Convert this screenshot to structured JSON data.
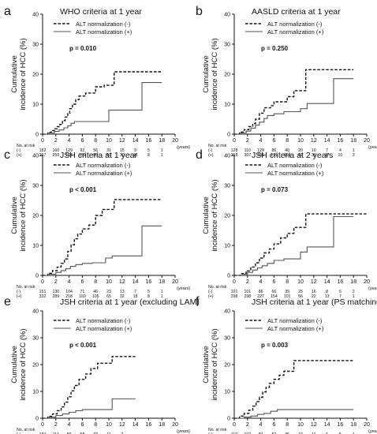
{
  "axis_units": {
    "x": "(years)",
    "risk_header": "No. at risk",
    "minus": "(-)",
    "plus": "(+)"
  },
  "style": {
    "minus_color": "#111111",
    "plus_color": "#555555"
  },
  "chart_data": [
    {
      "panel": "a",
      "title": "WHO criteria at 1 year",
      "type": "line",
      "ylabel": "Cumulative incidence of HCC (%)",
      "xlabel": "(years)",
      "xlim": [
        0,
        20
      ],
      "ylim": [
        0,
        40
      ],
      "xticks": [
        0,
        2,
        4,
        6,
        8,
        10,
        12,
        14,
        16,
        18,
        20
      ],
      "yticks": [
        0,
        10,
        20,
        30,
        40
      ],
      "p_value": "p = 0.010",
      "series": [
        {
          "name": "ALT normalization (-)",
          "style": "dashed",
          "x": [
            0,
            0.8,
            1.3,
            1.8,
            2.2,
            2.6,
            3.0,
            3.4,
            3.8,
            4.1,
            4.5,
            5.0,
            5.5,
            6.5,
            7.3,
            8.0,
            9.3,
            10.8,
            16.0,
            18.0
          ],
          "y": [
            0,
            0.6,
            1.2,
            1.8,
            2.5,
            3.2,
            4.5,
            5.7,
            7.0,
            8.5,
            10.0,
            11.5,
            12.7,
            13.7,
            13.7,
            15.8,
            16.3,
            20.8,
            20.8,
            20.8
          ]
        },
        {
          "name": "ALT normalization (+)",
          "style": "solid",
          "x": [
            0,
            1.0,
            1.8,
            2.5,
            3.2,
            3.8,
            4.3,
            4.8,
            7.3,
            10.0,
            15.0,
            18.0
          ],
          "y": [
            0,
            0.4,
            0.9,
            1.4,
            2.1,
            2.8,
            3.6,
            4.2,
            4.2,
            8.0,
            17.2,
            17.2
          ]
        }
      ],
      "risk_table": {
        "times": [
          0,
          2,
          4,
          6,
          8,
          10,
          12,
          14,
          16,
          18
        ],
        "minus": [
          "182",
          "160",
          "129",
          "92",
          "56",
          "31",
          "15",
          "9",
          "5",
          "1"
        ],
        "plus": [
          "297",
          "259",
          "193",
          "159",
          "95",
          "57",
          "30",
          "16",
          "8",
          "1"
        ]
      }
    },
    {
      "panel": "b",
      "title": "AASLD criteria at 1 year",
      "type": "line",
      "ylabel": "Cumulative incidence of HCC (%)",
      "xlabel": "(years)",
      "xlim": [
        0,
        20
      ],
      "ylim": [
        0,
        40
      ],
      "xticks": [
        0,
        2,
        4,
        6,
        8,
        10,
        12,
        14,
        16,
        18,
        20
      ],
      "yticks": [
        0,
        10,
        20,
        30,
        40
      ],
      "p_value": "p = 0.250",
      "series": [
        {
          "name": "ALT normalization (-)",
          "style": "dashed",
          "x": [
            0,
            0.8,
            1.5,
            2.2,
            2.8,
            3.2,
            3.8,
            4.5,
            5.5,
            6.0,
            8.0,
            9.0,
            10.8,
            18.0
          ],
          "y": [
            0,
            0.7,
            1.5,
            2.5,
            3.5,
            5.0,
            7.0,
            8.8,
            9.5,
            10.8,
            12.5,
            14.5,
            21.5,
            21.5
          ]
        },
        {
          "name": "ALT normalization (+)",
          "style": "solid",
          "x": [
            0,
            1.0,
            1.8,
            2.5,
            3.2,
            3.8,
            4.5,
            5.0,
            6.0,
            7.5,
            10.0,
            11.0,
            15.0,
            18.0
          ],
          "y": [
            0,
            0.4,
            1.0,
            2.0,
            3.0,
            4.0,
            5.2,
            6.2,
            6.8,
            7.5,
            8.5,
            10.2,
            18.5,
            18.5
          ]
        }
      ],
      "risk_table": {
        "times": [
          0,
          2,
          4,
          6,
          8,
          10,
          12,
          14,
          16,
          18
        ],
        "minus": [
          "128",
          "110",
          "129",
          "86",
          "40",
          "20",
          "10",
          "7",
          "4",
          "1"
        ],
        "plus": [
          "358",
          "307",
          "241",
          "171",
          "114",
          "62",
          "36",
          "17",
          "10",
          "3"
        ]
      }
    },
    {
      "panel": "c",
      "title": "JSH criteria at 1 year",
      "type": "line",
      "ylabel": "Cumulative incidence of HCC (%)",
      "xlabel": "(years)",
      "xlim": [
        0,
        20
      ],
      "ylim": [
        0,
        40
      ],
      "xticks": [
        0,
        2,
        4,
        6,
        8,
        10,
        12,
        14,
        16,
        18,
        20
      ],
      "yticks": [
        0,
        10,
        20,
        30,
        40
      ],
      "p_value": "p < 0.001",
      "series": [
        {
          "name": "ALT normalization (-)",
          "style": "dashed",
          "x": [
            0,
            0.8,
            1.5,
            2.2,
            2.8,
            3.3,
            3.8,
            4.3,
            4.8,
            5.3,
            6.0,
            7.0,
            8.0,
            9.0,
            10.8,
            18.0
          ],
          "y": [
            0,
            0.7,
            1.6,
            2.8,
            4.0,
            5.5,
            8.0,
            10.2,
            12.2,
            13.8,
            15.5,
            16.8,
            20.0,
            22.0,
            25.3,
            25.3
          ]
        },
        {
          "name": "ALT normalization (+)",
          "style": "solid",
          "x": [
            0,
            1.0,
            2.0,
            2.8,
            3.5,
            4.2,
            5.0,
            6.0,
            7.5,
            9.5,
            10.5,
            15.0,
            18.0
          ],
          "y": [
            0,
            0.4,
            1.0,
            1.6,
            2.2,
            3.0,
            3.6,
            4.0,
            4.2,
            5.8,
            6.5,
            16.5,
            16.5
          ]
        }
      ],
      "risk_table": {
        "times": [
          0,
          2,
          4,
          6,
          8,
          10,
          12,
          14,
          16,
          18
        ],
        "minus": [
          "151",
          "130",
          "104",
          "71",
          "46",
          "23",
          "13",
          "7",
          "5",
          "1"
        ],
        "plus": [
          "332",
          "289",
          "218",
          "160",
          "105",
          "65",
          "32",
          "18",
          "8",
          "1"
        ]
      }
    },
    {
      "panel": "d",
      "title": "JSH criteria at 2 years",
      "type": "line",
      "ylabel": "Cumulative incidence of HCC (%)",
      "xlabel": "(years)",
      "xlim": [
        0,
        20
      ],
      "ylim": [
        0,
        40
      ],
      "xticks": [
        0,
        2,
        4,
        6,
        8,
        10,
        12,
        14,
        16,
        18,
        20
      ],
      "yticks": [
        0,
        10,
        20,
        30,
        40
      ],
      "p_value": "p = 0.073",
      "series": [
        {
          "name": "ALT normalization (-)",
          "style": "dashed",
          "x": [
            0,
            1.0,
            1.8,
            2.5,
            3.2,
            3.8,
            4.5,
            5.3,
            6.0,
            7.0,
            8.0,
            9.0,
            10.8,
            20.0
          ],
          "y": [
            0,
            0.6,
            1.5,
            2.8,
            4.2,
            5.8,
            7.5,
            8.8,
            10.5,
            12.5,
            14.0,
            16.0,
            20.5,
            20.5
          ]
        },
        {
          "name": "ALT normalization (+)",
          "style": "solid",
          "x": [
            0,
            1.2,
            2.0,
            2.8,
            3.5,
            4.2,
            5.0,
            6.0,
            7.5,
            10.0,
            11.0,
            15.0,
            18.0
          ],
          "y": [
            0,
            0.4,
            1.0,
            1.8,
            2.5,
            3.2,
            4.0,
            5.0,
            5.5,
            7.8,
            9.5,
            19.6,
            19.6
          ]
        }
      ],
      "risk_table": {
        "times": [
          0,
          2,
          4,
          6,
          8,
          10,
          12,
          14,
          16,
          18
        ],
        "minus": [
          "101",
          "101",
          "86",
          "66",
          "39",
          "25",
          "16",
          "8",
          "6",
          "2"
        ],
        "plus": [
          "298",
          "298",
          "227",
          "154",
          "101",
          "56",
          "22",
          "13",
          "7",
          "1"
        ]
      }
    },
    {
      "panel": "e",
      "title": "JSH criteria at 1 year (excluding LAM)",
      "type": "line",
      "ylabel": "Cumulative incidence of HCC (%)",
      "xlabel": "(years)",
      "xlim": [
        0,
        20
      ],
      "ylim": [
        0,
        40
      ],
      "xticks": [
        0,
        2,
        4,
        6,
        8,
        10,
        12,
        14,
        16,
        18,
        20
      ],
      "yticks": [
        0,
        10,
        20,
        30,
        40
      ],
      "p_value": "p < 0.001",
      "series": [
        {
          "name": "ALT normalization (-)",
          "style": "dashed",
          "x": [
            0,
            0.8,
            1.5,
            2.2,
            2.8,
            3.3,
            3.8,
            4.3,
            4.8,
            5.5,
            6.5,
            7.3,
            8.3,
            9.0,
            10.5,
            14.0
          ],
          "y": [
            0,
            0.7,
            1.6,
            2.8,
            4.2,
            6.0,
            8.0,
            10.2,
            12.2,
            14.5,
            16.5,
            18.5,
            20.5,
            20.5,
            23.0,
            23.0
          ]
        },
        {
          "name": "ALT normalization (+)",
          "style": "solid",
          "x": [
            0,
            1.0,
            2.0,
            3.0,
            4.0,
            5.0,
            6.0,
            10.5,
            14.0
          ],
          "y": [
            0,
            0.4,
            1.0,
            1.6,
            2.2,
            2.8,
            3.2,
            7.2,
            7.2
          ]
        }
      ],
      "risk_table": {
        "times": [
          0,
          2,
          4,
          6,
          8,
          10,
          12,
          14
        ],
        "minus": [
          "134",
          "114",
          "89",
          "58",
          "33",
          "11",
          "2",
          ""
        ],
        "plus": [
          "296",
          "255",
          "187",
          "131",
          "77",
          "39",
          "9",
          ""
        ]
      }
    },
    {
      "panel": "f",
      "title": "JSH criteria at 1 year (PS matching)",
      "type": "line",
      "ylabel": "Cumulative incidence of HCC (%)",
      "xlabel": "(years)",
      "xlim": [
        0,
        20
      ],
      "ylim": [
        0,
        40
      ],
      "xticks": [
        0,
        2,
        4,
        6,
        8,
        10,
        12,
        14,
        16,
        18,
        20
      ],
      "yticks": [
        0,
        10,
        20,
        30,
        40
      ],
      "p_value": "p = 0.003",
      "series": [
        {
          "name": "ALT normalization (-)",
          "style": "dashed",
          "x": [
            0,
            0.8,
            1.5,
            2.2,
            2.8,
            3.3,
            3.8,
            4.3,
            4.8,
            5.3,
            6.0,
            6.8,
            7.5,
            8.0,
            9.0,
            18.0
          ],
          "y": [
            0,
            0.8,
            1.8,
            3.0,
            4.5,
            6.2,
            7.8,
            9.8,
            11.5,
            13.0,
            14.5,
            16.0,
            17.5,
            17.5,
            21.5,
            21.5
          ]
        },
        {
          "name": "ALT normalization (+)",
          "style": "solid",
          "x": [
            0,
            1.5,
            2.5,
            3.5,
            4.5,
            5.5,
            6.5,
            18.0
          ],
          "y": [
            0,
            0.4,
            0.8,
            1.4,
            1.8,
            2.6,
            3.2,
            3.2
          ]
        }
      ],
      "risk_table": {
        "times": [
          0,
          2,
          4,
          6,
          8,
          10,
          12,
          14,
          16,
          18
        ],
        "minus": [
          "119",
          "102",
          "84",
          "57",
          "35",
          "19",
          "11",
          "6",
          "5",
          "1"
        ],
        "plus": [
          "119",
          "109",
          "87",
          "63",
          "42",
          "28",
          "15",
          "10",
          "5",
          "1"
        ]
      }
    }
  ]
}
